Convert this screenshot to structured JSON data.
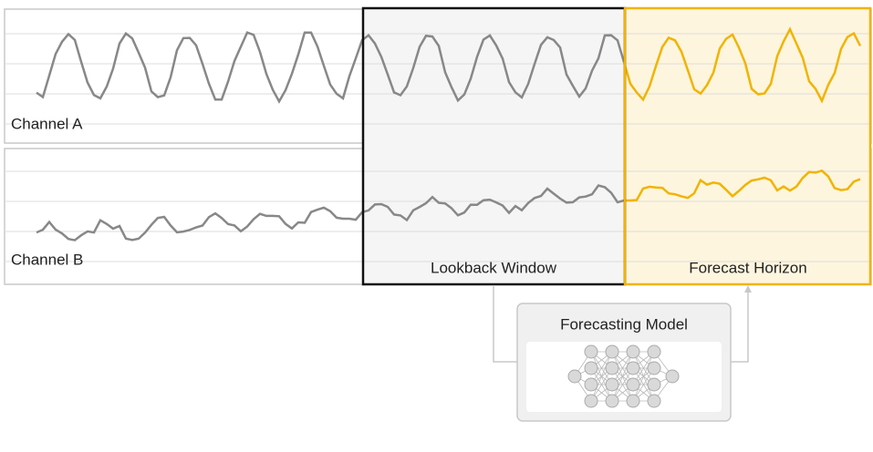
{
  "channels": [
    {
      "label": "Channel A"
    },
    {
      "label": "Channel B"
    }
  ],
  "lookback": {
    "label": "Lookback Window"
  },
  "forecast": {
    "label": "Forecast Horizon"
  },
  "model": {
    "title": "Forecasting Model"
  }
}
